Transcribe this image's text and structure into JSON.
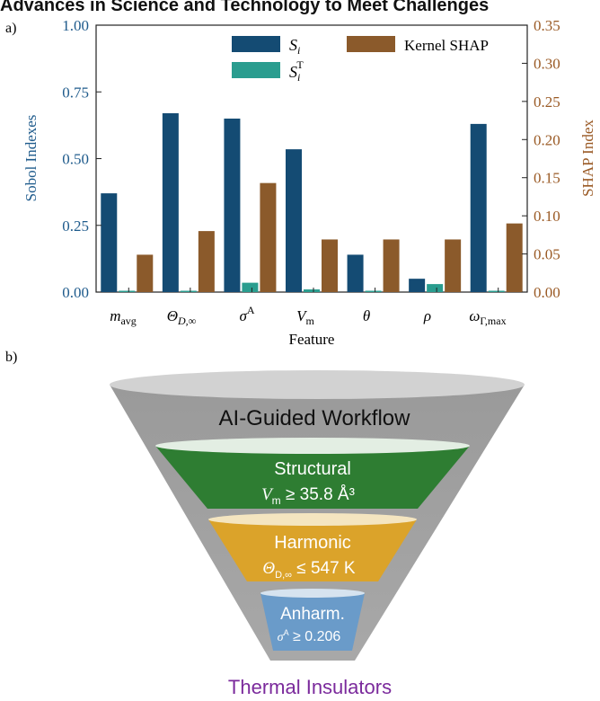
{
  "header": {
    "title": "Advances in Science and Technology to Meet Challenges"
  },
  "panel_a_label": "a)",
  "panel_b_label": "b)",
  "colors": {
    "si": "#144b73",
    "sit": "#2a9d8f",
    "shap": "#8b5a2b",
    "left_axis": "#1f5b8c",
    "right_axis": "#9a5a25"
  },
  "chart_data": {
    "type": "bar",
    "xlabel": "Feature",
    "ylabel_left": "Sobol Indexes",
    "ylabel_right": "SHAP Index",
    "ylim_left": [
      0,
      1.0
    ],
    "ylim_right": [
      0,
      0.35
    ],
    "yticks_left": [
      "0.00",
      "0.25",
      "0.50",
      "0.75",
      "1.00"
    ],
    "yticks_right": [
      "0.00",
      "0.05",
      "0.10",
      "0.15",
      "0.20",
      "0.25",
      "0.30",
      "0.35"
    ],
    "categories": [
      "m_avg",
      "Θ_D,∞",
      "σ^A",
      "V_m",
      "θ",
      "ρ",
      "ω_Γ,max"
    ],
    "legend_placement": "top-right",
    "series": [
      {
        "name": "S_i",
        "axis": "left",
        "values": [
          0.37,
          0.67,
          0.65,
          0.535,
          0.14,
          0.05,
          0.63
        ]
      },
      {
        "name": "S_i^T",
        "axis": "left",
        "values": [
          0.005,
          0.005,
          0.035,
          0.01,
          0.005,
          0.03,
          0.005
        ]
      },
      {
        "name": "Kernel SHAP",
        "axis": "right",
        "values": [
          0.049,
          0.08,
          0.143,
          0.069,
          0.069,
          0.069,
          0.09
        ]
      }
    ]
  },
  "funnel": {
    "title": "AI-Guided Workflow",
    "stages": [
      {
        "name": "Structural",
        "criterion": "Vm ≥ 35.8 Å³",
        "color": "#2e7d32"
      },
      {
        "name": "Harmonic",
        "criterion": "ΘD,∞ ≤ 547 K",
        "color": "#dba32a"
      },
      {
        "name": "Anharm.",
        "criterion": "σA ≥ 0.206",
        "color": "#6a9bc9"
      }
    ],
    "output": "Thermal Insulators",
    "output_color": "#7b2a9c"
  }
}
